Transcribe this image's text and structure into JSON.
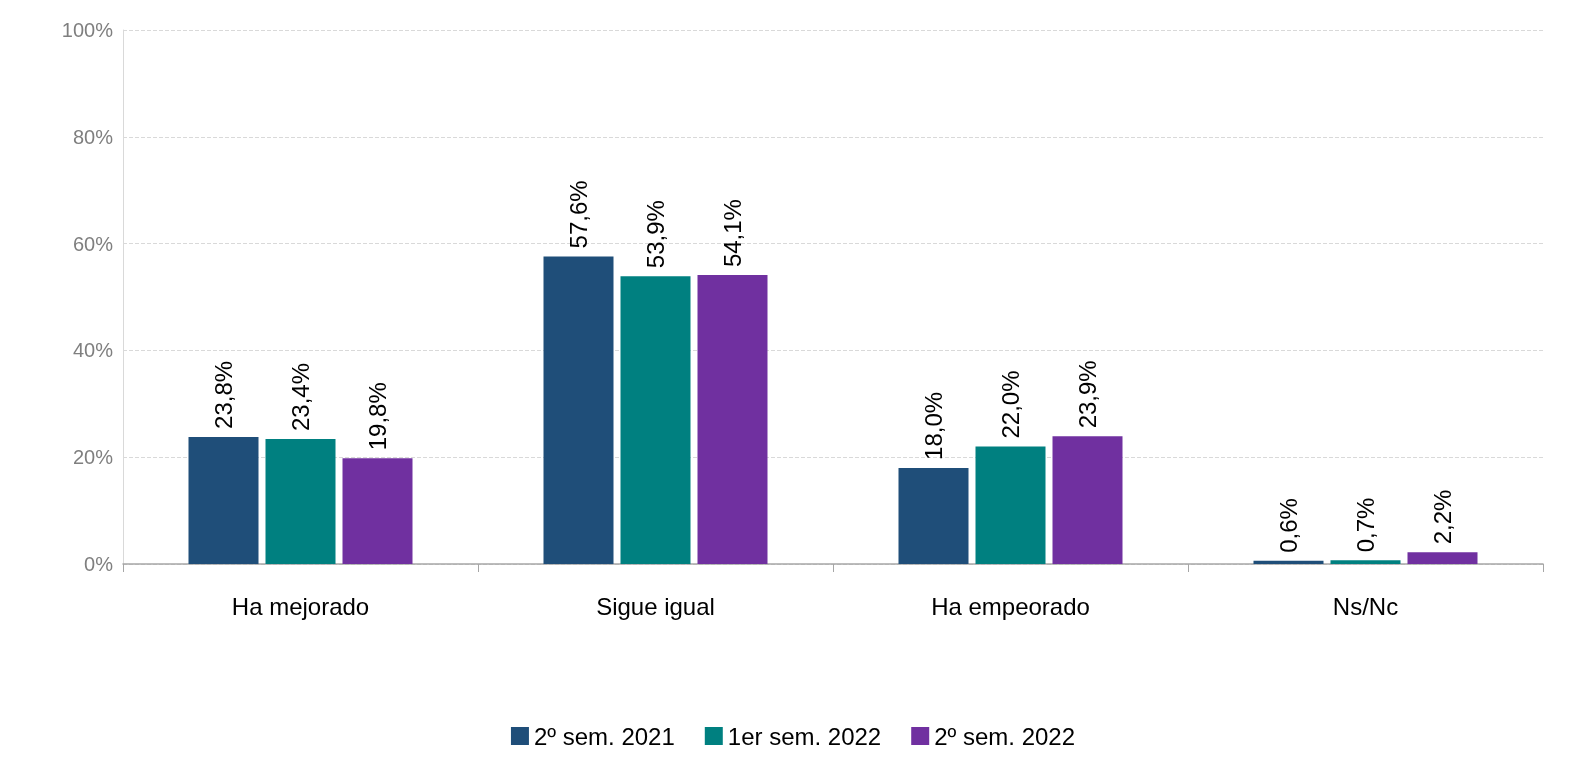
{
  "chart_data": {
    "type": "bar",
    "categories": [
      "Ha mejorado",
      "Sigue igual",
      "Ha empeorado",
      "Ns/Nc"
    ],
    "series": [
      {
        "name": "2º sem. 2021",
        "color": "#1f4e79",
        "values": [
          23.8,
          57.6,
          18.0,
          0.6
        ],
        "value_labels": [
          "23,8%",
          "57,6%",
          "18,0%",
          "0,6%"
        ]
      },
      {
        "name": "1er sem. 2022",
        "color": "#008080",
        "values": [
          23.4,
          53.9,
          22.0,
          0.7
        ],
        "value_labels": [
          "23,4%",
          "53,9%",
          "22,0%",
          "0,7%"
        ]
      },
      {
        "name": "2º sem. 2022",
        "color": "#7030a0",
        "values": [
          19.8,
          54.1,
          23.9,
          2.2
        ],
        "value_labels": [
          "19,8%",
          "54,1%",
          "23,9%",
          "2,2%"
        ]
      }
    ],
    "ylim": [
      0,
      100
    ],
    "yticks": [
      {
        "value": 0,
        "label": "0%"
      },
      {
        "value": 20,
        "label": "20%"
      },
      {
        "value": 40,
        "label": "40%"
      },
      {
        "value": 60,
        "label": "60%"
      },
      {
        "value": 80,
        "label": "80%"
      },
      {
        "value": 100,
        "label": "100%"
      }
    ],
    "grid": "y",
    "legend": "bottom"
  }
}
